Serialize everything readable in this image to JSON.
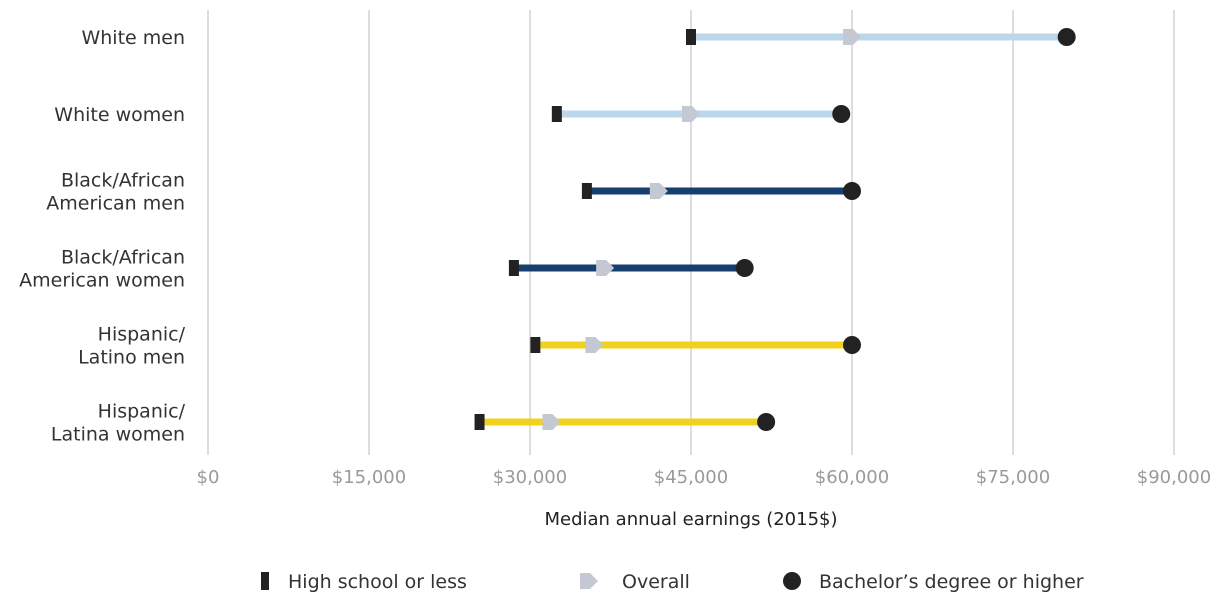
{
  "chart_data": {
    "type": "dumbbell",
    "xlabel": "Median annual earnings (2015$)",
    "xlim": [
      0,
      90000
    ],
    "xticks": [
      0,
      15000,
      30000,
      45000,
      60000,
      75000,
      90000
    ],
    "xtick_labels": [
      "$0",
      "$15,000",
      "$30,000",
      "$45,000",
      "$60,000",
      "$75,000",
      "$90,000"
    ],
    "grid": true,
    "legend_position": "bottom",
    "legend": [
      {
        "key": "hs",
        "label": "High school or less",
        "marker": "bar",
        "color": "#222222"
      },
      {
        "key": "overall",
        "label": "Overall",
        "marker": "arrow",
        "color": "#c4c8d2"
      },
      {
        "key": "ba",
        "label": "Bachelor’s degree or higher",
        "marker": "circle",
        "color": "#222222"
      }
    ],
    "groups": [
      {
        "label_lines": [
          "White men"
        ],
        "hs": 45000,
        "overall": 60000,
        "ba": 80000,
        "line_color": "#bcd7ec"
      },
      {
        "label_lines": [
          "White women"
        ],
        "hs": 32500,
        "overall": 45000,
        "ba": 59000,
        "line_color": "#bcd7ec"
      },
      {
        "label_lines": [
          "Black/African",
          "American men"
        ],
        "hs": 35300,
        "overall": 42000,
        "ba": 60000,
        "line_color": "#163e6e"
      },
      {
        "label_lines": [
          "Black/African",
          "American women"
        ],
        "hs": 28500,
        "overall": 37000,
        "ba": 50000,
        "line_color": "#163e6e"
      },
      {
        "label_lines": [
          "Hispanic/",
          "Latino men"
        ],
        "hs": 30500,
        "overall": 36000,
        "ba": 60000,
        "line_color": "#f2d11c"
      },
      {
        "label_lines": [
          "Hispanic/",
          "Latina women"
        ],
        "hs": 25300,
        "overall": 32000,
        "ba": 52000,
        "line_color": "#f2d11c"
      }
    ]
  }
}
